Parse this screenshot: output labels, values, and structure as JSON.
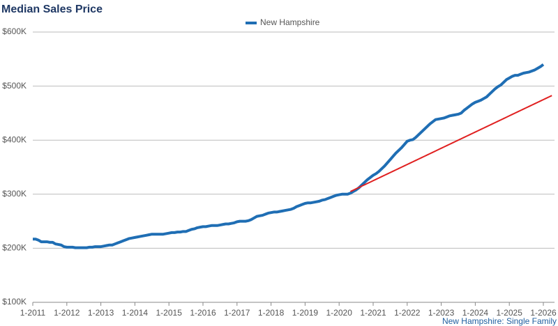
{
  "chart_data": {
    "type": "line",
    "title": "Median Sales Price",
    "caption": "New Hampshire: Single Family",
    "categories": [
      "1-2011",
      null,
      null,
      null,
      null,
      null,
      null,
      null,
      null,
      null,
      null,
      null,
      "1-2012",
      null,
      null,
      null,
      null,
      null,
      null,
      null,
      null,
      null,
      null,
      null,
      "1-2013",
      null,
      null,
      null,
      null,
      null,
      null,
      null,
      null,
      null,
      null,
      null,
      "1-2014",
      null,
      null,
      null,
      null,
      null,
      null,
      null,
      null,
      null,
      null,
      null,
      "1-2015",
      null,
      null,
      null,
      null,
      null,
      null,
      null,
      null,
      null,
      null,
      null,
      "1-2016",
      null,
      null,
      null,
      null,
      null,
      null,
      null,
      null,
      null,
      null,
      null,
      "1-2017",
      null,
      null,
      null,
      null,
      null,
      null,
      null,
      null,
      null,
      null,
      null,
      "1-2018",
      null,
      null,
      null,
      null,
      null,
      null,
      null,
      null,
      null,
      null,
      null,
      "1-2019",
      null,
      null,
      null,
      null,
      null,
      null,
      null,
      null,
      null,
      null,
      null,
      "1-2020",
      null,
      null,
      null,
      null,
      null,
      null,
      null,
      null,
      null,
      null,
      null,
      "1-2021",
      null,
      null,
      null,
      null,
      null,
      null,
      null,
      null,
      null,
      null,
      null,
      "1-2022",
      null,
      null,
      null,
      null,
      null,
      null,
      null,
      null,
      null,
      null,
      null,
      "1-2023",
      null,
      null,
      null,
      null,
      null,
      null,
      null,
      null,
      null,
      null,
      null,
      "1-2024",
      null,
      null,
      null,
      null,
      null,
      null,
      null,
      null,
      null,
      null,
      null,
      "1-2025",
      null,
      null,
      null,
      null,
      null,
      null,
      null,
      null,
      null,
      null,
      null,
      "1-2026",
      null,
      null,
      null
    ],
    "series": [
      {
        "name": "New Hampshire",
        "color": "#1f6eb4",
        "values": [
          217000,
          217000,
          215000,
          212000,
          212000,
          212000,
          211000,
          211000,
          208000,
          207000,
          206000,
          203000,
          202000,
          202000,
          202000,
          201000,
          201000,
          201000,
          201000,
          201000,
          202000,
          202000,
          203000,
          203000,
          203000,
          204000,
          205000,
          206000,
          206000,
          208000,
          210000,
          212000,
          214000,
          216000,
          218000,
          219000,
          220000,
          221000,
          222000,
          223000,
          224000,
          225000,
          226000,
          226000,
          226000,
          226000,
          226000,
          227000,
          228000,
          229000,
          229000,
          230000,
          230000,
          231000,
          231000,
          233000,
          235000,
          236000,
          238000,
          239000,
          240000,
          240000,
          241000,
          242000,
          242000,
          242000,
          243000,
          244000,
          245000,
          245000,
          246000,
          247000,
          249000,
          250000,
          250000,
          250000,
          251000,
          253000,
          256000,
          259000,
          260000,
          261000,
          263000,
          265000,
          266000,
          267000,
          267000,
          268000,
          269000,
          270000,
          271000,
          272000,
          274000,
          277000,
          279000,
          281000,
          283000,
          284000,
          284000,
          285000,
          286000,
          287000,
          289000,
          290000,
          292000,
          294000,
          296000,
          298000,
          299000,
          300000,
          300000,
          300000,
          302000,
          305000,
          308000,
          312000,
          317000,
          322000,
          327000,
          331000,
          335000,
          338000,
          342000,
          347000,
          352000,
          358000,
          364000,
          370000,
          376000,
          381000,
          386000,
          392000,
          398000,
          400000,
          401000,
          405000,
          410000,
          415000,
          420000,
          425000,
          430000,
          434000,
          438000,
          439000,
          440000,
          441000,
          443000,
          445000,
          446000,
          447000,
          448000,
          450000,
          455000,
          459000,
          463000,
          467000,
          470000,
          472000,
          474000,
          477000,
          480000,
          485000,
          490000,
          495000,
          499000,
          502000,
          507000,
          512000,
          515000,
          518000,
          520000,
          520000,
          522000,
          524000,
          525000,
          526000,
          528000,
          530000,
          533000,
          536000,
          540000,
          null,
          null,
          null
        ]
      },
      {
        "color": "#e02020",
        "values": [
          null,
          null,
          null,
          null,
          null,
          null,
          null,
          null,
          null,
          null,
          null,
          null,
          null,
          null,
          null,
          null,
          null,
          null,
          null,
          null,
          null,
          null,
          null,
          null,
          null,
          null,
          null,
          null,
          null,
          null,
          null,
          null,
          null,
          null,
          null,
          null,
          null,
          null,
          null,
          null,
          null,
          null,
          null,
          null,
          null,
          null,
          null,
          null,
          null,
          null,
          null,
          null,
          null,
          null,
          null,
          null,
          null,
          null,
          null,
          null,
          null,
          null,
          null,
          null,
          null,
          null,
          null,
          null,
          null,
          null,
          null,
          null,
          null,
          null,
          null,
          null,
          null,
          null,
          null,
          null,
          null,
          null,
          null,
          null,
          null,
          null,
          null,
          null,
          null,
          null,
          null,
          null,
          null,
          null,
          null,
          null,
          null,
          null,
          null,
          null,
          null,
          null,
          null,
          null,
          null,
          null,
          null,
          null,
          null,
          null,
          null,
          null,
          305000,
          307500,
          310000,
          312500,
          315000,
          317500,
          320000,
          322500,
          325000,
          327500,
          330000,
          332500,
          335000,
          337500,
          340000,
          342500,
          345000,
          347500,
          350000,
          352500,
          355000,
          357500,
          360000,
          362500,
          365000,
          367500,
          370000,
          372500,
          375000,
          377500,
          380000,
          382500,
          385000,
          387500,
          390000,
          392500,
          395000,
          397500,
          400000,
          402500,
          405000,
          407500,
          410000,
          412500,
          415000,
          417500,
          420000,
          422500,
          425000,
          427500,
          430000,
          432500,
          435000,
          437500,
          440000,
          442500,
          445000,
          447500,
          450000,
          452500,
          455000,
          457500,
          460000,
          462500,
          465000,
          467500,
          470000,
          472500,
          475000,
          477500,
          480000,
          482500
        ]
      }
    ],
    "ylim": [
      100000,
      600000
    ],
    "yticks": [
      {
        "value": 100000,
        "label": "$100K"
      },
      {
        "value": 200000,
        "label": "$200K"
      },
      {
        "value": 300000,
        "label": "$300K"
      },
      {
        "value": 400000,
        "label": "$400K"
      },
      {
        "value": 500000,
        "label": "$500K"
      },
      {
        "value": 600000,
        "label": "$600K"
      }
    ],
    "grid": true,
    "legend": "top"
  }
}
